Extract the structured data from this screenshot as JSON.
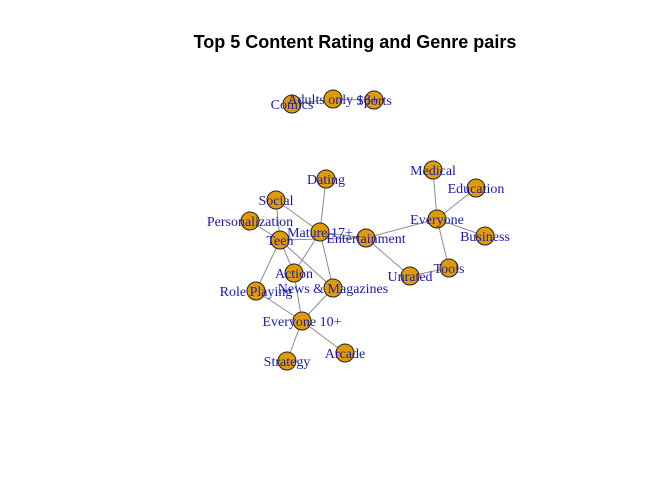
{
  "title": "Top 5 Content Rating and Genre pairs",
  "colors": {
    "node": "#e09b05",
    "label": "#1a1ab0",
    "edge": "#8c8c8c"
  },
  "nodes": [
    {
      "id": "comics",
      "label": "Comics"
    },
    {
      "id": "adults_only",
      "label": "Adults only 18+"
    },
    {
      "id": "sports",
      "label": "Sports"
    },
    {
      "id": "dating",
      "label": "Dating"
    },
    {
      "id": "medical",
      "label": "Medical"
    },
    {
      "id": "education",
      "label": "Education"
    },
    {
      "id": "social",
      "label": "Social"
    },
    {
      "id": "everyone",
      "label": "Everyone"
    },
    {
      "id": "personalization",
      "label": "Personalization"
    },
    {
      "id": "mature",
      "label": "Mature 17+"
    },
    {
      "id": "entertainment",
      "label": "Entertainment"
    },
    {
      "id": "business",
      "label": "Business"
    },
    {
      "id": "teen",
      "label": "Teen"
    },
    {
      "id": "tools",
      "label": "Tools"
    },
    {
      "id": "unrated",
      "label": "Unrated"
    },
    {
      "id": "action",
      "label": "Action"
    },
    {
      "id": "role_playing",
      "label": "Role Playing"
    },
    {
      "id": "news",
      "label": "News & Magazines"
    },
    {
      "id": "everyone10",
      "label": "Everyone 10+"
    },
    {
      "id": "arcade",
      "label": "Arcade"
    },
    {
      "id": "strategy",
      "label": "Strategy"
    }
  ],
  "edges": [
    [
      "adults_only",
      "comics"
    ],
    [
      "adults_only",
      "sports"
    ],
    [
      "everyone",
      "medical"
    ],
    [
      "everyone",
      "education"
    ],
    [
      "everyone",
      "business"
    ],
    [
      "everyone",
      "tools"
    ],
    [
      "everyone",
      "entertainment"
    ],
    [
      "mature",
      "dating"
    ],
    [
      "mature",
      "social"
    ],
    [
      "mature",
      "entertainment"
    ],
    [
      "mature",
      "action"
    ],
    [
      "mature",
      "news"
    ],
    [
      "teen",
      "social"
    ],
    [
      "teen",
      "personalization"
    ],
    [
      "teen",
      "entertainment"
    ],
    [
      "teen",
      "action"
    ],
    [
      "teen",
      "role_playing"
    ],
    [
      "teen",
      "news"
    ],
    [
      "unrated",
      "entertainment"
    ],
    [
      "unrated",
      "tools"
    ],
    [
      "everyone10",
      "action"
    ],
    [
      "everyone10",
      "role_playing"
    ],
    [
      "everyone10",
      "news"
    ],
    [
      "everyone10",
      "arcade"
    ],
    [
      "everyone10",
      "strategy"
    ]
  ]
}
